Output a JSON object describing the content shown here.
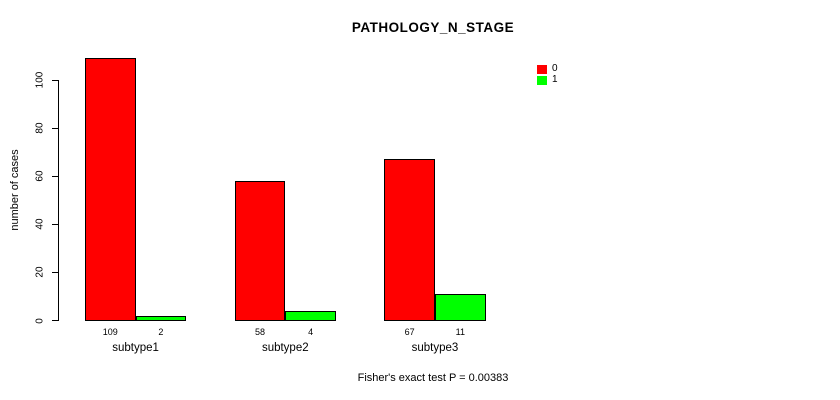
{
  "title": "PATHOLOGY_N_STAGE",
  "footnote": "Fisher's exact test P = 0.00383",
  "legend": [
    {
      "label": "0",
      "color": "#FF0000"
    },
    {
      "label": "1",
      "color": "#00FF00"
    }
  ],
  "chart_data": {
    "type": "bar",
    "title": "PATHOLOGY_N_STAGE",
    "xlabel": "",
    "ylabel": "number of cases",
    "categories": [
      "subtype1",
      "subtype2",
      "subtype3"
    ],
    "series": [
      {
        "name": "0",
        "color": "#FF0000",
        "values": [
          109,
          58,
          67
        ]
      },
      {
        "name": "1",
        "color": "#00FF00",
        "values": [
          2,
          4,
          11
        ]
      }
    ],
    "bar_value_labels": [
      [
        "109",
        "58",
        "67"
      ],
      [
        "2",
        "4",
        "11"
      ]
    ],
    "yticks": [
      0,
      20,
      40,
      60,
      80,
      100
    ],
    "ylim": [
      0,
      112
    ],
    "grid": false,
    "legend_position": "top-right",
    "annotation": "Fisher's exact test P = 0.00383"
  }
}
